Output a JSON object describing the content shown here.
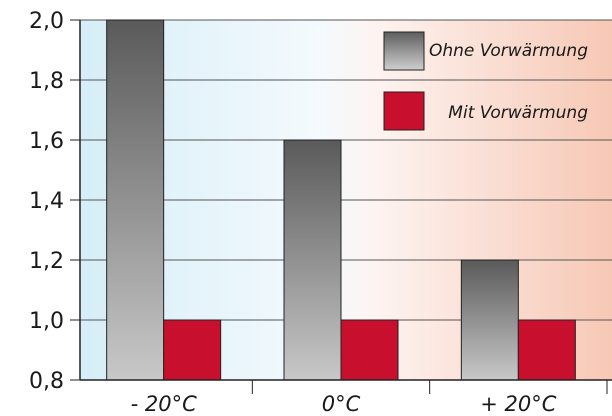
{
  "chart_data": {
    "type": "bar",
    "categories": [
      "- 20°C",
      "0°C",
      "+ 20°C"
    ],
    "series": [
      {
        "name": "Ohne Vorwärmung",
        "values": [
          2.0,
          1.6,
          1.2
        ],
        "color": "#7a7a7a"
      },
      {
        "name": "Mit Vorwärmung",
        "values": [
          1.0,
          1.0,
          1.0
        ],
        "color": "#c8102e"
      }
    ],
    "yticks": [
      "0,8",
      "1,0",
      "1,2",
      "1,4",
      "1,6",
      "1,8",
      "2,0"
    ],
    "ylim": [
      0.8,
      2.0
    ],
    "grid": true,
    "legend_position": "top-right",
    "title": "",
    "xlabel": "",
    "ylabel": ""
  }
}
